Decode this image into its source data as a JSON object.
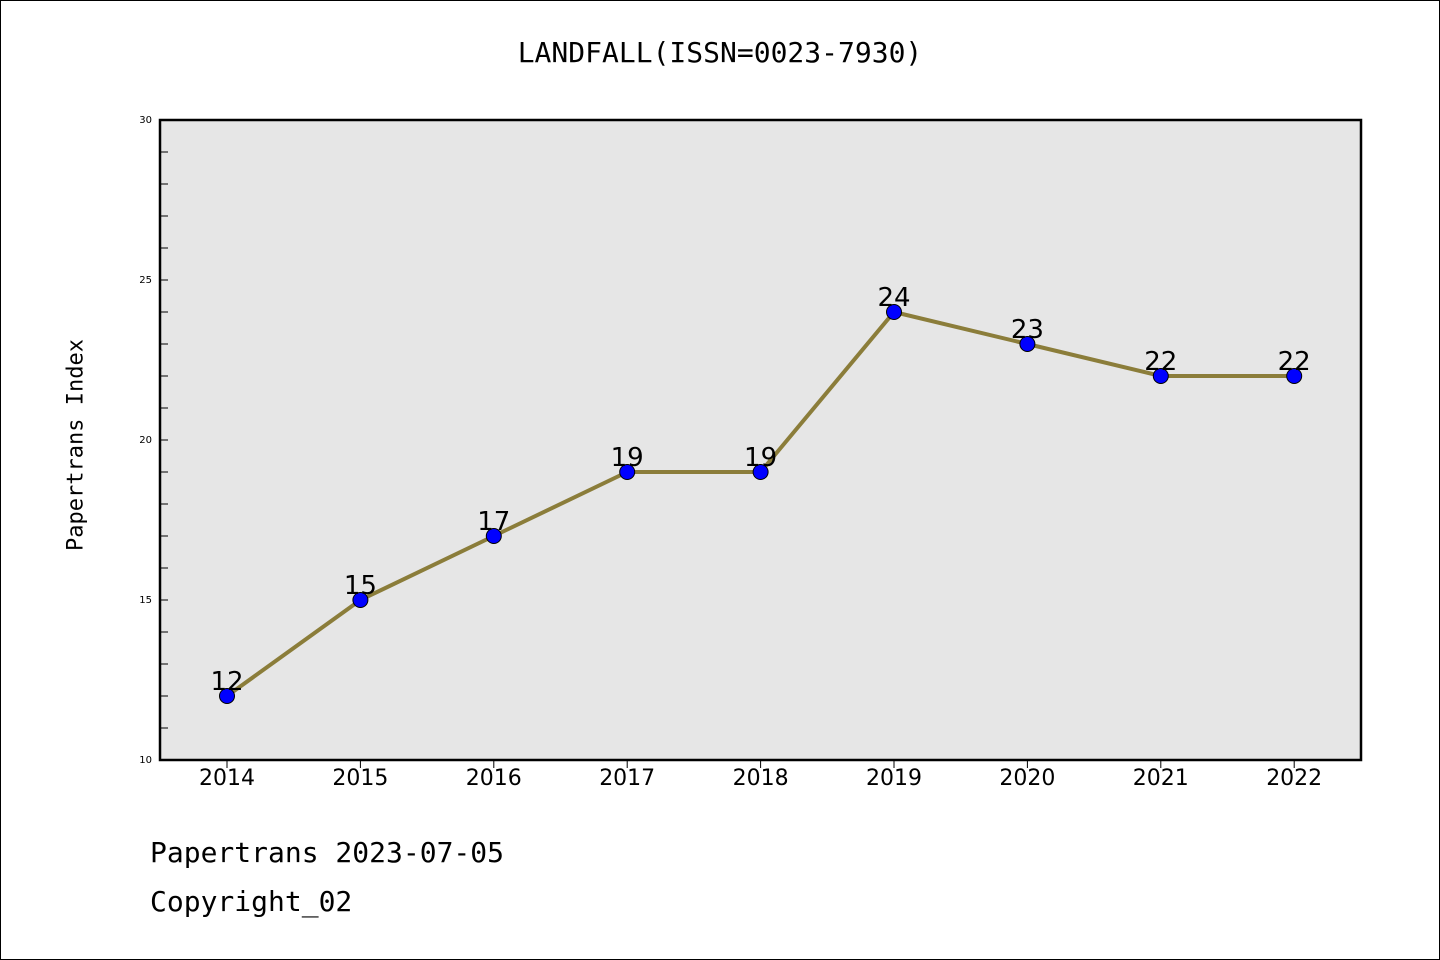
{
  "chart_data": {
    "type": "line",
    "title": "LANDFALL(ISSN=0023-7930)",
    "xlabel": "",
    "ylabel": "Papertrans Index",
    "categories": [
      "2014",
      "2015",
      "2016",
      "2017",
      "2018",
      "2019",
      "2020",
      "2021",
      "2022"
    ],
    "values": [
      12,
      15,
      17,
      19,
      19,
      24,
      23,
      22,
      22
    ],
    "data_labels": [
      "12",
      "15",
      "17",
      "19",
      "19",
      "24",
      "23",
      "22",
      "22"
    ],
    "ylim": [
      10,
      30
    ],
    "yticks": [
      10,
      15,
      20,
      25,
      30
    ],
    "ytick_labels": [
      "10",
      "15",
      "20",
      "25",
      "30"
    ],
    "grid": false,
    "legend": "none",
    "colors": {
      "line": "#8b7d3a",
      "marker": "#0000ff",
      "plot_background": "#e6e6e6"
    }
  },
  "footer": {
    "date_text": "Papertrans 2023-07-05",
    "copyright_text": "Copyright_02"
  }
}
